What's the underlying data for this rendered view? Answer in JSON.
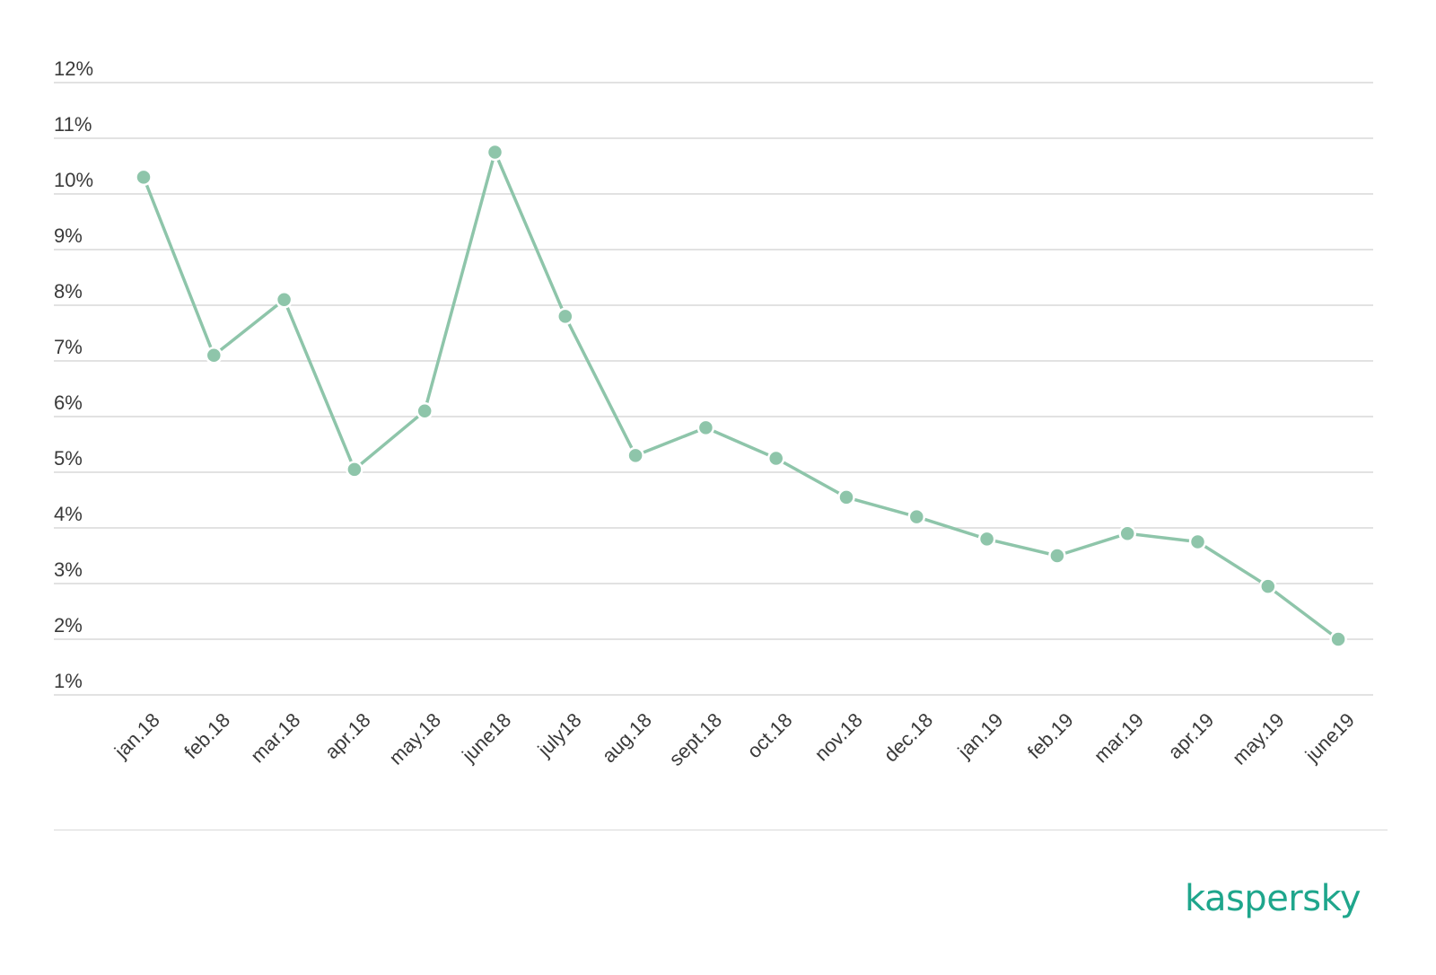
{
  "chart_data": {
    "type": "line",
    "categories": [
      "jan.18",
      "feb.18",
      "mar.18",
      "apr.18",
      "may.18",
      "june18",
      "july18",
      "aug.18",
      "sept.18",
      "oct.18",
      "nov.18",
      "dec.18",
      "jan.19",
      "feb.19",
      "mar.19",
      "apr.19",
      "may.19",
      "june19"
    ],
    "series": [
      {
        "values": [
          10.3,
          7.1,
          8.1,
          5.05,
          6.1,
          10.75,
          7.8,
          5.3,
          5.8,
          5.25,
          4.55,
          4.2,
          3.8,
          3.5,
          3.9,
          3.75,
          2.95,
          2.0
        ]
      }
    ],
    "ylim": [
      1,
      12
    ],
    "yticks": [
      1,
      2,
      3,
      4,
      5,
      6,
      7,
      8,
      9,
      10,
      11,
      12
    ],
    "ytick_labels": [
      "1%",
      "2%",
      "3%",
      "4%",
      "5%",
      "6%",
      "7%",
      "8%",
      "9%",
      "10%",
      "11%",
      "12%"
    ],
    "grid": true,
    "legend": "none",
    "line_color": "#8ec5aa"
  },
  "branding": {
    "logo_text": "kaspersky",
    "logo_color": "#1fa68c"
  }
}
